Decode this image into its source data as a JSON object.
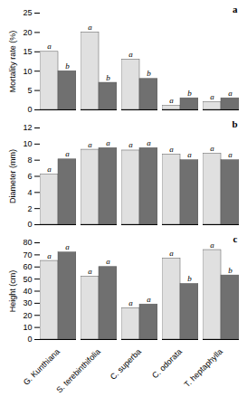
{
  "chart_data": [
    {
      "type": "bar",
      "categories": [
        "G. Kunthiana",
        "S. terebinthifolia",
        "C. superba",
        "C. odorata",
        "T. heptaphylla"
      ],
      "series": [
        {
          "color": "#e0e0e0",
          "values": [
            15,
            20,
            13,
            1,
            2
          ],
          "annotations": [
            "a",
            "a",
            "a",
            "a",
            "a"
          ]
        },
        {
          "color": "#707070",
          "values": [
            10,
            7,
            8,
            3,
            3
          ],
          "annotations": [
            "b",
            "b",
            "b",
            "b",
            "a"
          ]
        }
      ],
      "ylabel": "Mortality rate (%)",
      "ylim": [
        0,
        25
      ],
      "yticks": [
        0,
        5,
        10,
        15,
        20,
        25
      ],
      "panel_label": "a",
      "tick_labels": "y"
    },
    {
      "type": "bar",
      "categories": [
        "G. Kunthiana",
        "S. terebinthifolia",
        "C. superba",
        "C. odorata",
        "T. heptaphylla"
      ],
      "series": [
        {
          "color": "#e0e0e0",
          "values": [
            6.2,
            9.3,
            9.2,
            8.7,
            8.8
          ],
          "annotations": [
            "a",
            "a",
            "a",
            "a",
            "a"
          ]
        },
        {
          "color": "#707070",
          "values": [
            8.1,
            9.5,
            9.5,
            8.0,
            8.0
          ],
          "annotations": [
            "a",
            "a",
            "a",
            "a",
            "a"
          ]
        }
      ],
      "ylabel": "Diameter (mm)",
      "ylim": [
        0,
        12
      ],
      "yticks": [
        0,
        2,
        4,
        6,
        8,
        10,
        12
      ],
      "panel_label": "b",
      "tick_labels": "y"
    },
    {
      "type": "bar",
      "categories": [
        "G. Kunthiana",
        "S. terebinthifolia",
        "C. superba",
        "C. odorata",
        "T. heptaphylla"
      ],
      "series": [
        {
          "color": "#e0e0e0",
          "values": [
            65,
            52,
            26,
            67,
            74
          ],
          "annotations": [
            "a",
            "a",
            "a",
            "a",
            "a"
          ]
        },
        {
          "color": "#707070",
          "values": [
            72,
            60,
            29,
            46,
            53
          ],
          "annotations": [
            "a",
            "a",
            "a",
            "b",
            "b"
          ]
        }
      ],
      "ylabel": "Height (cm)",
      "ylim": [
        0,
        80
      ],
      "yticks": [
        0,
        10,
        20,
        30,
        40,
        50,
        60,
        70,
        80
      ],
      "panel_label": "c"
    }
  ]
}
